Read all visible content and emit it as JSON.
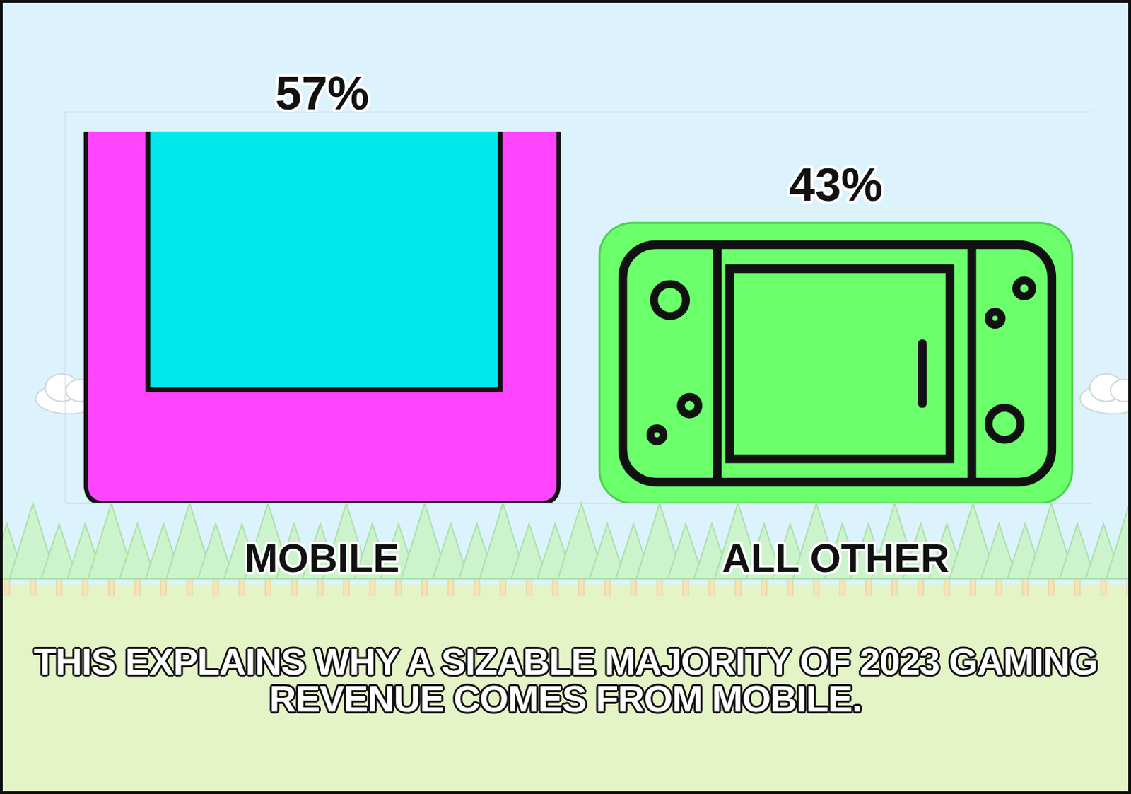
{
  "chart_data": {
    "type": "bar",
    "categories": [
      "MOBILE",
      "ALL OTHER"
    ],
    "values": [
      57,
      43
    ],
    "value_labels": [
      "57%",
      "43%"
    ],
    "colors": [
      "#ff44ff",
      "#6cff6c"
    ],
    "ylim": [
      0,
      60
    ],
    "yticks": [
      0,
      10,
      20,
      30,
      40,
      50,
      60
    ],
    "grid": true,
    "data_labels": true,
    "tick_labels": "x",
    "annotations": [
      "THIS EXPLAINS WHY A SIZABLE MAJORITY OF 2023 GAMING REVENUE COMES FROM MOBILE."
    ]
  }
}
